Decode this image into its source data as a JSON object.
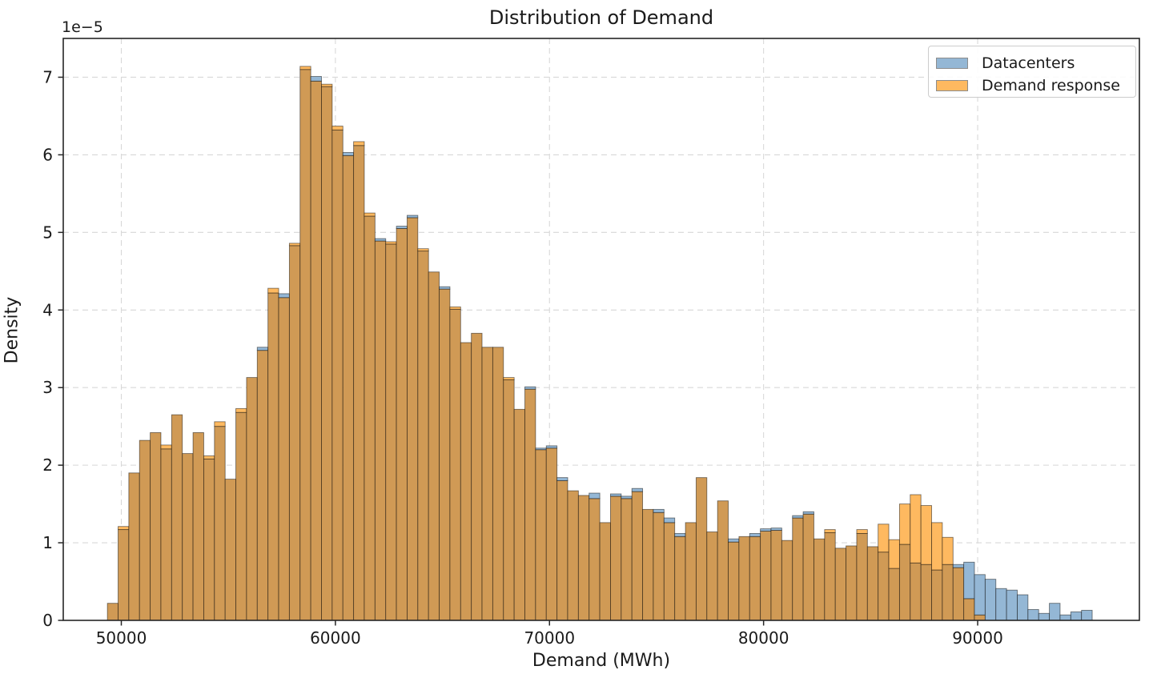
{
  "chart_data": {
    "type": "histogram",
    "title": "Distribution of Demand",
    "xlabel": "Demand (MWh)",
    "ylabel": "Density",
    "y_offset_label": "1e−5",
    "bin_start": 49350,
    "bin_width": 500,
    "x_ticks": [
      50000,
      60000,
      70000,
      80000,
      90000
    ],
    "y_ticks": [
      0,
      1,
      2,
      3,
      4,
      5,
      6,
      7
    ],
    "x_range": [
      47288,
      97554
    ],
    "y_range": [
      0,
      7.5
    ],
    "y_unit": "1e-5",
    "grid": true,
    "grid_style": "dashed",
    "legend_position": "upper right",
    "overlap_color": "#d09a55",
    "series": [
      {
        "name": "Datacenters",
        "color": "#94b7d5",
        "values": [
          0.22,
          1.17,
          1.9,
          2.32,
          2.42,
          2.21,
          2.65,
          2.15,
          2.42,
          2.08,
          2.5,
          1.82,
          2.68,
          3.13,
          3.52,
          4.22,
          4.21,
          4.83,
          7.1,
          7.01,
          6.88,
          6.32,
          6.03,
          6.12,
          5.21,
          4.92,
          4.85,
          5.08,
          5.22,
          4.76,
          4.49,
          4.3,
          4.01,
          3.58,
          3.7,
          3.52,
          3.52,
          3.1,
          2.72,
          3.01,
          2.22,
          2.25,
          1.84,
          1.67,
          1.61,
          1.64,
          1.26,
          1.63,
          1.6,
          1.7,
          1.43,
          1.43,
          1.32,
          1.12,
          1.26,
          1.84,
          1.14,
          1.54,
          1.05,
          1.08,
          1.12,
          1.18,
          1.19,
          1.03,
          1.35,
          1.4,
          1.05,
          1.13,
          0.93,
          0.96,
          1.12,
          0.95,
          0.88,
          0.67,
          0.98,
          0.74,
          0.72,
          0.65,
          0.72,
          0.72,
          0.75,
          0.59,
          0.53,
          0.41,
          0.39,
          0.33,
          0.14,
          0.09,
          0.22,
          0.07,
          0.11,
          0.13
        ]
      },
      {
        "name": "Demand response",
        "color": "#feb960",
        "values": [
          0.22,
          1.21,
          1.9,
          2.32,
          2.42,
          2.26,
          2.65,
          2.15,
          2.42,
          2.12,
          2.56,
          1.82,
          2.73,
          3.13,
          3.48,
          4.28,
          4.16,
          4.86,
          7.14,
          6.95,
          6.91,
          6.37,
          5.99,
          6.17,
          5.25,
          4.89,
          4.88,
          5.05,
          5.19,
          4.79,
          4.49,
          4.27,
          4.04,
          3.58,
          3.7,
          3.52,
          3.52,
          3.13,
          2.72,
          2.98,
          2.2,
          2.22,
          1.8,
          1.67,
          1.61,
          1.57,
          1.26,
          1.6,
          1.57,
          1.66,
          1.43,
          1.39,
          1.26,
          1.08,
          1.26,
          1.84,
          1.14,
          1.54,
          1.01,
          1.08,
          1.08,
          1.15,
          1.16,
          1.03,
          1.32,
          1.37,
          1.05,
          1.17,
          0.93,
          0.96,
          1.17,
          0.95,
          1.24,
          1.04,
          1.5,
          1.62,
          1.48,
          1.26,
          1.07,
          0.68,
          0.28,
          0.07,
          0,
          0,
          0,
          0,
          0,
          0,
          0,
          0,
          0,
          0
        ]
      }
    ]
  }
}
